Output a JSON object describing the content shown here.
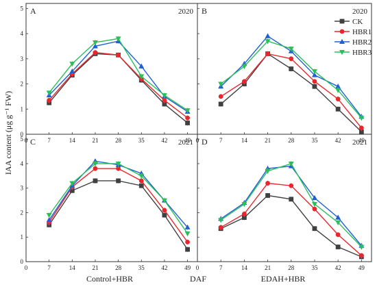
{
  "chart_data": {
    "type": "line",
    "ylabel": "IAA content (μg g⁻¹ FW)",
    "xlabel": "DAF",
    "x_bottom_labels": [
      "Control+HBR",
      "EDAH+HBR"
    ],
    "x": [
      7,
      14,
      21,
      28,
      35,
      42,
      49
    ],
    "xticks": [
      0,
      7,
      14,
      21,
      28,
      35,
      42,
      49
    ],
    "xlim": [
      0,
      52
    ],
    "ylim": [
      0,
      5.2
    ],
    "yticks": [
      0,
      1,
      2,
      3,
      4,
      5
    ],
    "legend": {
      "placement": "top-right",
      "entries": [
        {
          "name": "CK",
          "color": "#404040",
          "marker": "square"
        },
        {
          "name": "HBR1",
          "color": "#e8262b",
          "marker": "circle"
        },
        {
          "name": "HBR2",
          "color": "#1f5fd6",
          "marker": "triangle-up"
        },
        {
          "name": "HBR3",
          "color": "#2bbf5a",
          "marker": "triangle-down"
        }
      ]
    },
    "panels": [
      {
        "letter": "A",
        "year": "2020",
        "series": [
          {
            "name": "CK",
            "values": [
              1.25,
              2.35,
              3.2,
              3.15,
              2.15,
              1.2,
              0.45
            ]
          },
          {
            "name": "HBR1",
            "values": [
              1.35,
              2.4,
              3.25,
              3.15,
              2.2,
              1.35,
              0.65
            ]
          },
          {
            "name": "HBR2",
            "values": [
              1.55,
              2.5,
              3.5,
              3.7,
              2.7,
              1.5,
              0.9
            ]
          },
          {
            "name": "HBR3",
            "values": [
              1.65,
              2.8,
              3.65,
              3.8,
              2.3,
              1.55,
              0.95
            ]
          }
        ]
      },
      {
        "letter": "B",
        "year": "2020",
        "series": [
          {
            "name": "CK",
            "values": [
              1.2,
              2.0,
              3.2,
              2.6,
              1.9,
              1.0,
              0.1
            ]
          },
          {
            "name": "HBR1",
            "values": [
              1.5,
              2.1,
              3.2,
              3.0,
              2.1,
              1.4,
              0.25
            ]
          },
          {
            "name": "HBR2",
            "values": [
              1.9,
              2.8,
              3.9,
              3.3,
              2.35,
              1.9,
              0.7
            ]
          },
          {
            "name": "HBR3",
            "values": [
              2.0,
              2.7,
              3.7,
              3.4,
              2.5,
              1.75,
              0.65
            ]
          }
        ]
      },
      {
        "letter": "C",
        "year": "2021",
        "series": [
          {
            "name": "CK",
            "values": [
              1.5,
              2.9,
              3.3,
              3.3,
              3.1,
              1.9,
              0.5
            ]
          },
          {
            "name": "HBR1",
            "values": [
              1.6,
              3.05,
              3.8,
              3.8,
              3.3,
              2.1,
              0.8
            ]
          },
          {
            "name": "HBR2",
            "values": [
              1.7,
              3.1,
              4.1,
              3.95,
              3.6,
              2.5,
              1.4
            ]
          },
          {
            "name": "HBR3",
            "values": [
              1.9,
              3.2,
              4.0,
              4.0,
              3.5,
              2.5,
              1.15
            ]
          }
        ]
      },
      {
        "letter": "D",
        "year": "2021",
        "series": [
          {
            "name": "CK",
            "values": [
              1.35,
              1.8,
              2.7,
              2.55,
              1.35,
              0.6,
              0.2
            ]
          },
          {
            "name": "HBR1",
            "values": [
              1.4,
              1.95,
              3.2,
              3.1,
              2.15,
              1.1,
              0.25
            ]
          },
          {
            "name": "HBR2",
            "values": [
              1.75,
              2.4,
              3.8,
              3.9,
              2.6,
              1.8,
              0.65
            ]
          },
          {
            "name": "HBR3",
            "values": [
              1.7,
              2.35,
              3.7,
              4.0,
              2.35,
              1.6,
              0.6
            ]
          }
        ]
      }
    ]
  }
}
